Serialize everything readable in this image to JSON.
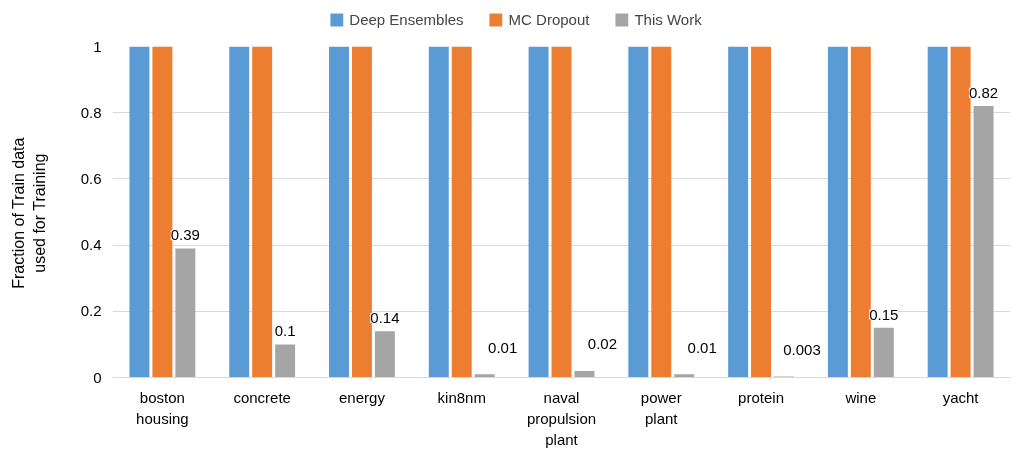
{
  "chart_data": {
    "type": "bar",
    "ylabel": "Fraction of Train data\nused for Training",
    "categories": [
      "boston\nhousing",
      "concrete",
      "energy",
      "kin8nm",
      "naval\npropulsion\nplant",
      "power\nplant",
      "protein",
      "wine",
      "yacht"
    ],
    "series": [
      {
        "name": "Deep Ensembles",
        "color": "#5b9bd5",
        "values": [
          1,
          1,
          1,
          1,
          1,
          1,
          1,
          1,
          1
        ]
      },
      {
        "name": "MC Dropout",
        "color": "#ed7d31",
        "values": [
          1,
          1,
          1,
          1,
          1,
          1,
          1,
          1,
          1
        ]
      },
      {
        "name": "This Work",
        "color": "#a5a5a5",
        "values": [
          0.39,
          0.1,
          0.14,
          0.01,
          0.02,
          0.01,
          0.003,
          0.15,
          0.82
        ],
        "value_labels": [
          "0.39",
          "0.1",
          "0.14",
          "0.01",
          "0.02",
          "0.01",
          "0.003",
          "0.15",
          "0.82"
        ]
      }
    ],
    "ylim": [
      0,
      1
    ],
    "yticks": [
      0,
      {
        "value": 0.2,
        "label": "0.2"
      },
      {
        "value": 0.4,
        "label": "0.4"
      },
      {
        "value": 0.6,
        "label": "0.6"
      },
      {
        "value": 0.8,
        "label": "0.8"
      },
      1
    ],
    "grid": "y",
    "legend": "top"
  }
}
